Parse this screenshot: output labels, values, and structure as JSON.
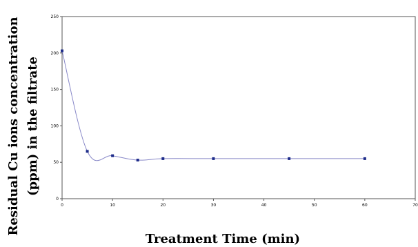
{
  "chart_data": {
    "type": "line",
    "title": "",
    "xlabel": "Treatment Time (min)",
    "ylabel_lines": [
      "Residual Cu ions concentration",
      "(ppm) in the filtrate"
    ],
    "xlim": [
      0,
      70
    ],
    "ylim": [
      0,
      250
    ],
    "xticks": [
      0,
      10,
      20,
      30,
      40,
      50,
      60,
      70
    ],
    "yticks": [
      0,
      50,
      100,
      150,
      200,
      250
    ],
    "grid": false,
    "series": [
      {
        "color": "#1f2d8a",
        "x": [
          0,
          5,
          10,
          15,
          20,
          30,
          45,
          60
        ],
        "y": [
          203,
          65,
          59,
          53,
          55,
          55,
          55,
          55
        ]
      }
    ]
  }
}
